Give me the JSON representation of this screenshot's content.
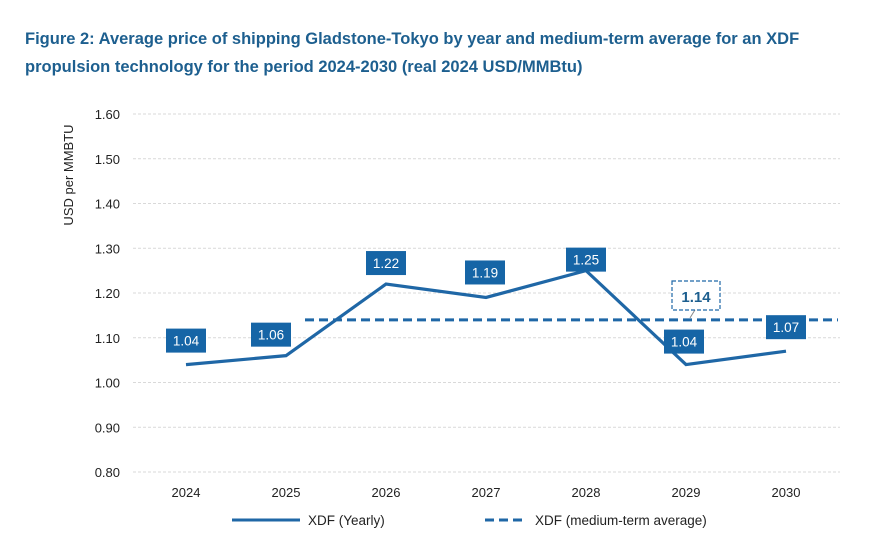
{
  "chart_data": {
    "type": "line",
    "title": "Figure 2: Average price of shipping Gladstone-Tokyo by year and medium-term average for an XDF propulsion technology for the period 2024-2030 (real 2024 USD/MMBtu)",
    "xlabel": "",
    "ylabel": "USD per MMBTU",
    "categories": [
      "2024",
      "2025",
      "2026",
      "2027",
      "2028",
      "2029",
      "2030"
    ],
    "ylim": [
      0.8,
      1.6
    ],
    "yticks": [
      "0.80",
      "0.90",
      "1.00",
      "1.10",
      "1.20",
      "1.30",
      "1.40",
      "1.50",
      "1.60"
    ],
    "grid": true,
    "legend_position": "bottom",
    "series": [
      {
        "name": "XDF (Yearly)",
        "style": "solid",
        "color": "#1f67a6",
        "values": [
          1.04,
          1.06,
          1.22,
          1.19,
          1.25,
          1.04,
          1.07
        ],
        "labels": [
          "1.04",
          "1.06",
          "1.22",
          "1.19",
          "1.25",
          "1.04",
          "1.07"
        ]
      },
      {
        "name": "XDF (medium-term average)",
        "style": "dashed",
        "color": "#1f67a6",
        "value": 1.14,
        "label": "1.14",
        "range": [
          "2025",
          "2030"
        ]
      }
    ]
  }
}
